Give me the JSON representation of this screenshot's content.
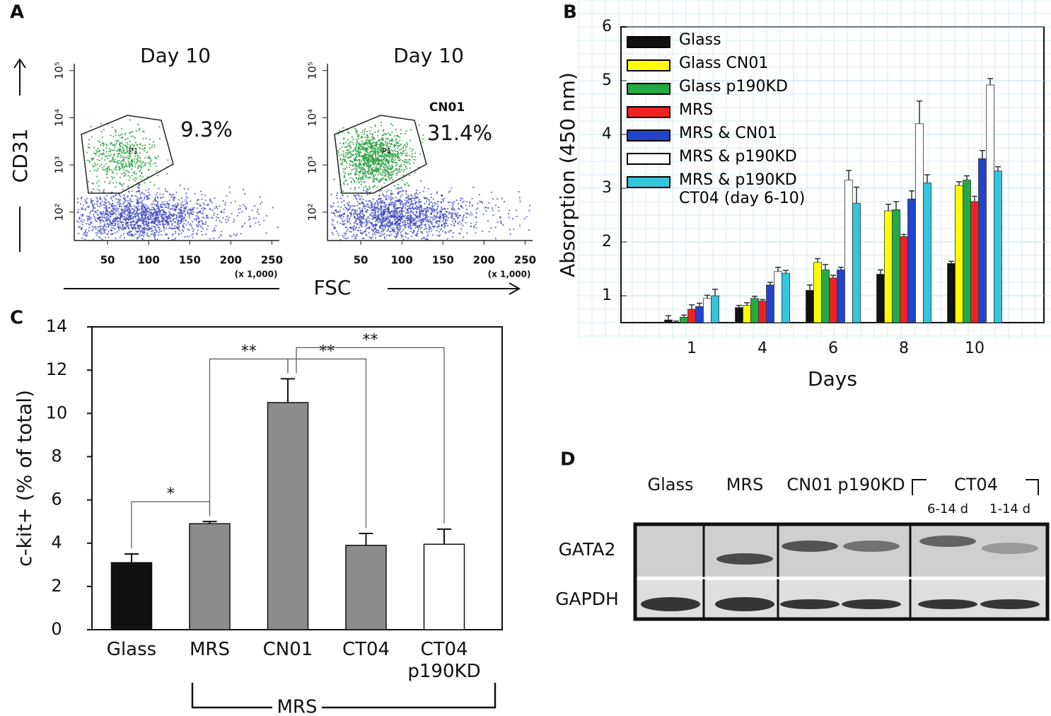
{
  "panel_a": {
    "panel": "A",
    "y_label": "CD31",
    "x_label": "FSC"
  },
  "chart_data": [
    {
      "type": "flow",
      "title": "Day 10",
      "annotation": "9.3%",
      "gate": "P1",
      "xlim": [
        0,
        260
      ],
      "xticks": [
        50,
        100,
        150,
        200,
        250
      ],
      "x_note": "(x 1,000)",
      "log_y": true,
      "ylim": [
        25,
        140000
      ],
      "yticks": [
        {
          "value": 100,
          "label": "10²"
        },
        {
          "value": 1000,
          "label": "10³"
        },
        {
          "value": 10000,
          "label": "10⁴"
        },
        {
          "value": 100000,
          "label": "10⁵"
        }
      ]
    },
    {
      "type": "flow",
      "title": "Day 10",
      "subtitle": "CN01",
      "annotation": "31.4%",
      "gate": "P1",
      "xlim": [
        0,
        260
      ],
      "xticks": [
        50,
        100,
        150,
        200,
        250
      ],
      "x_note": "(x 1,000)",
      "log_y": true,
      "ylim": [
        25,
        140000
      ],
      "yticks": [
        {
          "value": 100,
          "label": "10²"
        },
        {
          "value": 1000,
          "label": "10³"
        },
        {
          "value": 10000,
          "label": "10⁴"
        },
        {
          "value": 100000,
          "label": "10⁵"
        }
      ]
    },
    {
      "type": "grouped-bar",
      "panel": "B",
      "x_label": "Days",
      "y_label": "Absorption (450 nm)",
      "categories": [
        "1",
        "4",
        "6",
        "8",
        "10"
      ],
      "ylim": [
        0.5,
        6
      ],
      "yticks": [
        1,
        2,
        3,
        4,
        5,
        6
      ],
      "grid": true,
      "series": [
        {
          "name": "Glass",
          "color": "#111111",
          "values": [
            0.55,
            0.78,
            1.1,
            1.4,
            1.6
          ],
          "errors": [
            0.08,
            0.04,
            0.1,
            0.08,
            0.04
          ]
        },
        {
          "name": "Glass CN01",
          "color": "#ffff00",
          "values": [
            0.5,
            0.82,
            1.62,
            2.58,
            3.05
          ],
          "errors": [
            0.03,
            0.05,
            0.07,
            0.12,
            0.07
          ]
        },
        {
          "name": "Glass p190KD",
          "color": "#22aa44",
          "values": [
            0.6,
            0.95,
            1.48,
            2.6,
            3.15
          ],
          "errors": [
            0.04,
            0.04,
            0.1,
            0.15,
            0.08
          ]
        },
        {
          "name": "MRS",
          "color": "#ee2222",
          "values": [
            0.75,
            0.9,
            1.33,
            2.1,
            2.75
          ],
          "errors": [
            0.08,
            0.03,
            0.05,
            0.04,
            0.1
          ]
        },
        {
          "name": "MRS & CN01",
          "color": "#2244cc",
          "values": [
            0.8,
            1.2,
            1.48,
            2.8,
            3.55
          ],
          "errors": [
            0.06,
            0.05,
            0.05,
            0.15,
            0.15
          ]
        },
        {
          "name": "MRS & p190KD",
          "color": "#ffffff",
          "values": [
            0.95,
            1.45,
            3.15,
            4.2,
            4.92
          ],
          "errors": [
            0.06,
            0.08,
            0.18,
            0.42,
            0.12
          ]
        },
        {
          "name": "MRS & p190KD\nCT04 (day 6-10)",
          "color": "#33c6dd",
          "values": [
            1.0,
            1.42,
            2.72,
            3.1,
            3.32
          ],
          "errors": [
            0.12,
            0.05,
            0.3,
            0.15,
            0.08
          ]
        }
      ]
    },
    {
      "type": "bar",
      "panel": "C",
      "y_label": "c-kit+ (% of total)",
      "categories": [
        "Glass",
        "MRS",
        "CN01",
        "CT04",
        "CT04\np190KD"
      ],
      "values": [
        3.1,
        4.9,
        10.5,
        3.9,
        3.95
      ],
      "errors": [
        0.4,
        0.1,
        1.1,
        0.55,
        0.7
      ],
      "colors": [
        "#111111",
        "#8c8c8c",
        "#8c8c8c",
        "#8c8c8c",
        "#ffffff"
      ],
      "ylim": [
        0,
        14
      ],
      "yticks": [
        0,
        2,
        4,
        6,
        8,
        10,
        12,
        14
      ],
      "significance": [
        {
          "from": "Glass",
          "to": "MRS",
          "label": "*"
        },
        {
          "from": "MRS",
          "to": "CN01",
          "label": "**"
        },
        {
          "from": "CN01",
          "to": "CT04",
          "label": "**"
        },
        {
          "from": "CN01",
          "to": "CT04\np190KD",
          "label": "**"
        }
      ],
      "group_label": "MRS"
    }
  ],
  "panel_d": {
    "panel": "D",
    "lanes": [
      "Glass",
      "MRS",
      "CN01",
      "p190KD"
    ],
    "group": {
      "label": "CT04",
      "lanes": [
        "6-14 d",
        "1-14 d"
      ]
    },
    "rows": [
      "GATA2",
      "GAPDH"
    ]
  }
}
